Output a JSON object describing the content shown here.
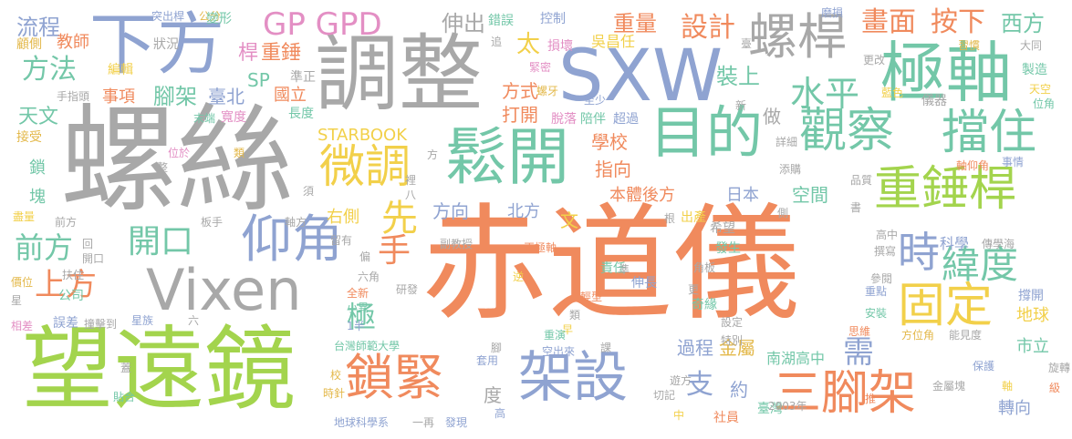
{
  "palette": {
    "green": "#a3d44d",
    "orange": "#f08a5d",
    "blue": "#8fa3d1",
    "gray": "#a8a8a8",
    "yellow": "#f2d04a",
    "teal": "#73c7a8",
    "pink": "#e38fc4",
    "gold": "#e3b84a"
  },
  "words": [
    {
      "text": "赤道儀",
      "color": "orange"
    },
    {
      "text": "螺絲",
      "color": "gray"
    },
    {
      "text": "望遠鏡",
      "color": "green"
    },
    {
      "text": "調整",
      "color": "gray"
    },
    {
      "text": "SXW",
      "color": "blue"
    },
    {
      "text": "下方",
      "color": "blue"
    },
    {
      "text": "極軸",
      "color": "teal"
    },
    {
      "text": "鬆開",
      "color": "teal"
    },
    {
      "text": "目的",
      "color": "teal"
    },
    {
      "text": "Vixen",
      "color": "gray"
    },
    {
      "text": "架設",
      "color": "blue"
    },
    {
      "text": "鎖緊",
      "color": "orange"
    },
    {
      "text": "三腳架",
      "color": "orange"
    },
    {
      "text": "觀察",
      "color": "teal"
    },
    {
      "text": "擋住",
      "color": "teal"
    },
    {
      "text": "螺桿",
      "color": "gray"
    },
    {
      "text": "重錘桿",
      "color": "green"
    },
    {
      "text": "仰角",
      "color": "blue"
    },
    {
      "text": "固定",
      "color": "yellow"
    },
    {
      "text": "時",
      "color": "blue"
    },
    {
      "text": "緯度",
      "color": "teal"
    },
    {
      "text": "微調",
      "color": "yellow"
    },
    {
      "text": "GP GPD",
      "color": "pink"
    },
    {
      "text": "設計",
      "color": "orange"
    },
    {
      "text": "畫面",
      "color": "orange"
    },
    {
      "text": "按下",
      "color": "orange"
    },
    {
      "text": "西方",
      "color": "teal"
    },
    {
      "text": "水平",
      "color": "teal"
    },
    {
      "text": "開口",
      "color": "teal"
    },
    {
      "text": "前方",
      "color": "teal"
    },
    {
      "text": "上方",
      "color": "orange"
    },
    {
      "text": "方法",
      "color": "teal"
    },
    {
      "text": "流程",
      "color": "blue"
    },
    {
      "text": "需",
      "color": "blue"
    },
    {
      "text": "支",
      "color": "blue"
    },
    {
      "text": "先",
      "color": "yellow"
    },
    {
      "text": "手",
      "color": "orange"
    },
    {
      "text": "極",
      "color": "teal"
    },
    {
      "text": "伸出",
      "color": "gray"
    },
    {
      "text": "重量",
      "color": "orange"
    },
    {
      "text": "裝上",
      "color": "teal"
    },
    {
      "text": "太",
      "color": "yellow"
    },
    {
      "text": "STARBOOK",
      "color": "yellow"
    },
    {
      "text": "腳架",
      "color": "teal"
    },
    {
      "text": "天文",
      "color": "teal"
    },
    {
      "text": "重錘",
      "color": "orange"
    },
    {
      "text": "SP",
      "color": "teal"
    },
    {
      "text": "教師",
      "color": "orange"
    },
    {
      "text": "事項",
      "color": "orange"
    },
    {
      "text": "臺北",
      "color": "blue"
    },
    {
      "text": "國立",
      "color": "orange"
    },
    {
      "text": "桿",
      "color": "pink"
    },
    {
      "text": "方式",
      "color": "orange"
    },
    {
      "text": "打開",
      "color": "orange"
    },
    {
      "text": "學校",
      "color": "orange"
    },
    {
      "text": "指向",
      "color": "orange"
    },
    {
      "text": "本體後方",
      "color": "orange"
    },
    {
      "text": "日本",
      "color": "blue"
    },
    {
      "text": "空間",
      "color": "teal"
    },
    {
      "text": "方向",
      "color": "blue"
    },
    {
      "text": "北方",
      "color": "blue"
    },
    {
      "text": "右側",
      "color": "yellow"
    },
    {
      "text": "文",
      "color": "yellow"
    },
    {
      "text": "做",
      "color": "gray"
    },
    {
      "text": "過程",
      "color": "blue"
    },
    {
      "text": "金屬",
      "color": "gold"
    },
    {
      "text": "南湖高中",
      "color": "teal"
    },
    {
      "text": "約",
      "color": "blue"
    },
    {
      "text": "度",
      "color": "gray"
    },
    {
      "text": "科學",
      "color": "blue"
    },
    {
      "text": "地球",
      "color": "yellow"
    },
    {
      "text": "市立",
      "color": "teal"
    },
    {
      "text": "轉向",
      "color": "blue"
    },
    {
      "text": "臺灣",
      "color": "teal"
    },
    {
      "text": "鎖",
      "color": "teal"
    },
    {
      "text": "塊",
      "color": "teal"
    },
    {
      "text": "公司",
      "color": "teal"
    },
    {
      "text": "吳昌任",
      "color": "yellow"
    },
    {
      "text": "錯誤",
      "color": "teal"
    },
    {
      "text": "控制",
      "color": "blue"
    },
    {
      "text": "損壞",
      "color": "pink"
    },
    {
      "text": "狀況",
      "color": "gray"
    },
    {
      "text": "突出桿",
      "color": "blue"
    },
    {
      "text": "公分",
      "color": "gold"
    },
    {
      "text": "變形",
      "color": "teal"
    },
    {
      "text": "磨損",
      "color": "blue"
    },
    {
      "text": "習慣",
      "color": "gold"
    },
    {
      "text": "大同",
      "color": "gray"
    },
    {
      "text": "製造",
      "color": "teal"
    },
    {
      "text": "天空",
      "color": "yellow"
    },
    {
      "text": "位角",
      "color": "teal"
    },
    {
      "text": "顧側",
      "color": "gold"
    },
    {
      "text": "編輯",
      "color": "yellow"
    },
    {
      "text": "手指頭",
      "color": "gray"
    },
    {
      "text": "接受",
      "color": "gold"
    },
    {
      "text": "末端",
      "color": "teal"
    },
    {
      "text": "寬度",
      "color": "pink"
    },
    {
      "text": "長度",
      "color": "teal"
    },
    {
      "text": "準正",
      "color": "gray"
    },
    {
      "text": "緊密",
      "color": "pink"
    },
    {
      "text": "至少",
      "color": "blue"
    },
    {
      "text": "螺牙",
      "color": "gold"
    },
    {
      "text": "脫落",
      "color": "pink"
    },
    {
      "text": "陪伴",
      "color": "teal"
    },
    {
      "text": "超過",
      "color": "blue"
    },
    {
      "text": "新",
      "color": "gray"
    },
    {
      "text": "儀器",
      "color": "gray"
    },
    {
      "text": "藍色",
      "color": "yellow"
    },
    {
      "text": "更改",
      "color": "gray"
    },
    {
      "text": "詳細",
      "color": "gray"
    },
    {
      "text": "添購",
      "color": "gray"
    },
    {
      "text": "事情",
      "color": "blue"
    },
    {
      "text": "軸仰角",
      "color": "orange"
    },
    {
      "text": "品質",
      "color": "gray"
    },
    {
      "text": "撰寫",
      "color": "gray"
    },
    {
      "text": "傳學海",
      "color": "gray"
    },
    {
      "text": "參閱",
      "color": "gray"
    },
    {
      "text": "撐開",
      "color": "blue"
    },
    {
      "text": "重點",
      "color": "blue"
    },
    {
      "text": "安裝",
      "color": "teal"
    },
    {
      "text": "方位角",
      "color": "gold"
    },
    {
      "text": "能見度",
      "color": "gray"
    },
    {
      "text": "思維",
      "color": "orange"
    },
    {
      "text": "保護",
      "color": "blue"
    },
    {
      "text": "旋轉",
      "color": "gray"
    },
    {
      "text": "級",
      "color": "orange"
    },
    {
      "text": "金屬塊",
      "color": "gray"
    },
    {
      "text": "社員",
      "color": "orange"
    },
    {
      "text": "2003年",
      "color": "gray"
    },
    {
      "text": "希望",
      "color": "gray"
    },
    {
      "text": "出產",
      "color": "yellow"
    },
    {
      "text": "發生",
      "color": "teal"
    },
    {
      "text": "角板",
      "color": "gray"
    },
    {
      "text": "責任",
      "color": "teal"
    },
    {
      "text": "伸長",
      "color": "blue"
    },
    {
      "text": "輕型",
      "color": "orange"
    },
    {
      "text": "奇緣",
      "color": "teal"
    },
    {
      "text": "設定",
      "color": "gray"
    },
    {
      "text": "特別",
      "color": "gray"
    },
    {
      "text": "遊方",
      "color": "gray"
    },
    {
      "text": "切記",
      "color": "gray"
    },
    {
      "text": "正極軸",
      "color": "orange"
    },
    {
      "text": "副教授",
      "color": "gray"
    },
    {
      "text": "根",
      "color": "gray"
    },
    {
      "text": "研發",
      "color": "gray"
    },
    {
      "text": "類",
      "color": "gray"
    },
    {
      "text": "早",
      "color": "yellow"
    },
    {
      "text": "重演",
      "color": "teal"
    },
    {
      "text": "空出來",
      "color": "blue"
    },
    {
      "text": "課",
      "color": "gray"
    },
    {
      "text": "套用",
      "color": "blue"
    },
    {
      "text": "發現",
      "color": "blue"
    },
    {
      "text": "高",
      "color": "blue"
    },
    {
      "text": "中",
      "color": "yellow"
    },
    {
      "text": "全新",
      "color": "orange"
    },
    {
      "text": "小異",
      "color": "teal"
    },
    {
      "text": "1半",
      "color": "blue"
    },
    {
      "text": "六角",
      "color": "gray"
    },
    {
      "text": "留有",
      "color": "gray"
    },
    {
      "text": "台灣師範大學",
      "color": "teal"
    },
    {
      "text": "地球科學系",
      "color": "blue"
    },
    {
      "text": "一再",
      "color": "gray"
    },
    {
      "text": "校",
      "color": "gold"
    },
    {
      "text": "時針",
      "color": "gold"
    },
    {
      "text": "貼合",
      "color": "teal"
    },
    {
      "text": "蓋",
      "color": "gray"
    },
    {
      "text": "誤差",
      "color": "blue"
    },
    {
      "text": "撞擊到",
      "color": "gray"
    },
    {
      "text": "星族",
      "color": "blue"
    },
    {
      "text": "六",
      "color": "gray"
    },
    {
      "text": "相差",
      "color": "pink"
    },
    {
      "text": "星",
      "color": "gray"
    },
    {
      "text": "價位",
      "color": "gold"
    },
    {
      "text": "扶住",
      "color": "gray"
    },
    {
      "text": "開口",
      "color": "gray"
    },
    {
      "text": "回",
      "color": "gray"
    },
    {
      "text": "前方",
      "color": "gray"
    },
    {
      "text": "板手",
      "color": "gray"
    },
    {
      "text": "軸方",
      "color": "gray"
    },
    {
      "text": "盡量",
      "color": "yellow"
    },
    {
      "text": "位於",
      "color": "pink"
    },
    {
      "text": "整",
      "color": "gray"
    },
    {
      "text": "類",
      "color": "gold"
    },
    {
      "text": "須",
      "color": "gray"
    },
    {
      "text": "裡",
      "color": "gray"
    },
    {
      "text": "八",
      "color": "gray"
    },
    {
      "text": "偏",
      "color": "gray"
    },
    {
      "text": "逆",
      "color": "yellow"
    },
    {
      "text": "準",
      "color": "gray"
    },
    {
      "text": "更",
      "color": "gray"
    },
    {
      "text": "推",
      "color": "orange"
    },
    {
      "text": "軸",
      "color": "yellow"
    },
    {
      "text": "書",
      "color": "gray"
    },
    {
      "text": "側",
      "color": "gray"
    },
    {
      "text": "高中",
      "color": "gray"
    },
    {
      "text": "腳",
      "color": "gray"
    },
    {
      "text": "追",
      "color": "gray"
    },
    {
      "text": "臺",
      "color": "gray"
    },
    {
      "text": "方",
      "color": "gray"
    }
  ]
}
